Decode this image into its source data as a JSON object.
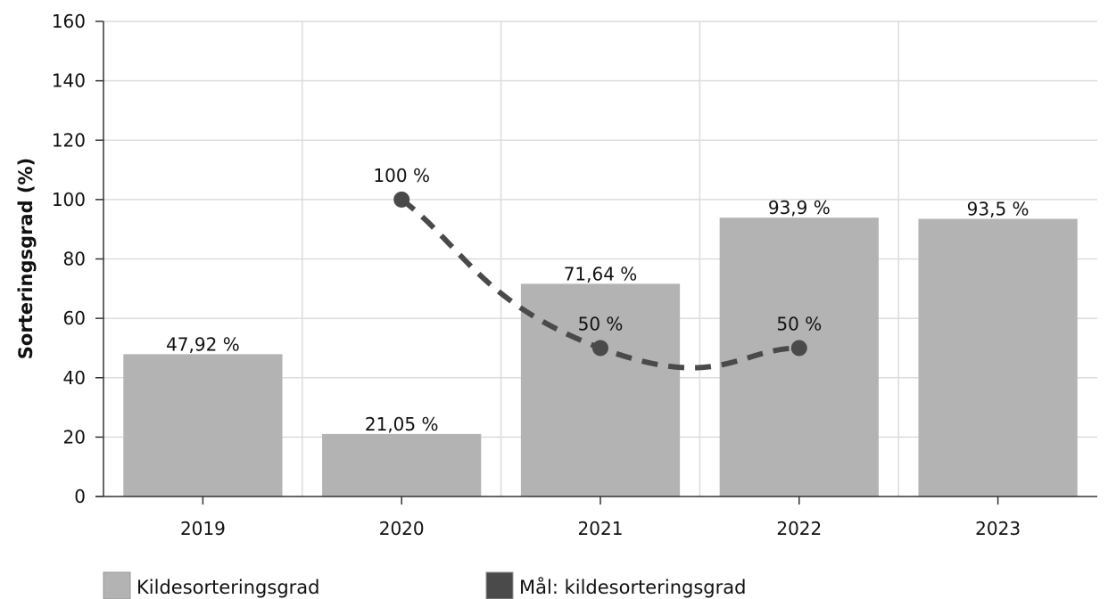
{
  "chart_data": {
    "type": "bar",
    "categories": [
      "2019",
      "2020",
      "2021",
      "2022",
      "2023"
    ],
    "ylabel": "Sorteringsgrad (%)",
    "xlabel": "",
    "ylim": [
      0,
      160
    ],
    "yticks": [
      0,
      20,
      40,
      60,
      80,
      100,
      120,
      140,
      160
    ],
    "grid": true,
    "legend_position": "bottom",
    "series": [
      {
        "name": "Kildesorteringsgrad",
        "kind": "bar",
        "color": "#b3b3b3",
        "values": [
          47.92,
          21.05,
          71.64,
          93.9,
          93.5
        ],
        "labels": [
          "47,92 %",
          "21,05 %",
          "71,64 %",
          "93,9 %",
          "93,5 %"
        ]
      },
      {
        "name": "Mål: kildesorteringsgrad",
        "kind": "line",
        "style": "dashed-smooth",
        "color": "#4a4a4a",
        "values": [
          null,
          100,
          50,
          50,
          null
        ],
        "labels": [
          "",
          "100 %",
          "50 %",
          "50 %",
          ""
        ]
      }
    ]
  }
}
